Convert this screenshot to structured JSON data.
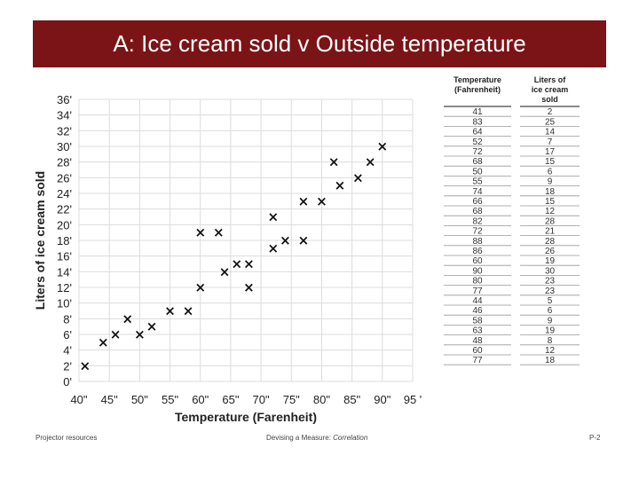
{
  "slide": {
    "title": "A: Ice cream sold v Outside temperature",
    "accent_color": "#7a1416"
  },
  "footer": {
    "left": "Projector resources",
    "center_prefix": "Devising a Measure: ",
    "center_emphasis": "Correlation",
    "right": "P-2"
  },
  "chart_data": {
    "type": "scatter",
    "title": "",
    "xlabel": "Temperature (Farenheit)",
    "ylabel": "Liters of ice cream sold",
    "xlim": [
      40,
      95
    ],
    "ylim": [
      0,
      36
    ],
    "x_ticks": [
      40,
      45,
      50,
      55,
      60,
      65,
      70,
      75,
      80,
      85,
      90,
      95
    ],
    "y_ticks": [
      0,
      2,
      4,
      6,
      8,
      10,
      12,
      14,
      16,
      18,
      20,
      22,
      24,
      26,
      28,
      30,
      32,
      34,
      36
    ],
    "x_tick_labels": [
      "40\"",
      "45\"",
      "50\"",
      "55\"",
      "60\"",
      "65\"",
      "70\"",
      "75\"",
      "80\"",
      "85\"",
      "90\"",
      "95 '"
    ],
    "y_tick_labels": [
      "0'",
      "2'",
      "4'",
      "6'",
      "8'",
      "10'",
      "12'",
      "14'",
      "16'",
      "18'",
      "20'",
      "22'",
      "24'",
      "26'",
      "28'",
      "30'",
      "32'",
      "34'",
      "36'"
    ],
    "marker": "×",
    "grid": true,
    "series": [
      {
        "name": "Liters of ice cream sold",
        "points": [
          [
            41,
            2
          ],
          [
            83,
            25
          ],
          [
            64,
            14
          ],
          [
            52,
            7
          ],
          [
            72,
            17
          ],
          [
            68,
            15
          ],
          [
            50,
            6
          ],
          [
            55,
            9
          ],
          [
            74,
            18
          ],
          [
            66,
            15
          ],
          [
            68,
            12
          ],
          [
            82,
            28
          ],
          [
            72,
            21
          ],
          [
            88,
            28
          ],
          [
            86,
            26
          ],
          [
            60,
            19
          ],
          [
            90,
            30
          ],
          [
            80,
            23
          ],
          [
            77,
            23
          ],
          [
            44,
            5
          ],
          [
            46,
            6
          ],
          [
            58,
            9
          ],
          [
            63,
            19
          ],
          [
            48,
            8
          ],
          [
            60,
            12
          ],
          [
            77,
            18
          ]
        ]
      }
    ]
  },
  "data_table": {
    "headers": [
      "Temperature\n(Fahrenheit)",
      "Liters of\nice cream\nsold"
    ],
    "rows": [
      [
        "41",
        "2"
      ],
      [
        "83",
        "25"
      ],
      [
        "64",
        "14"
      ],
      [
        "52",
        "7"
      ],
      [
        "72",
        "17"
      ],
      [
        "68",
        "15"
      ],
      [
        "50",
        "6"
      ],
      [
        "55",
        "9"
      ],
      [
        "74",
        "18"
      ],
      [
        "66",
        "15"
      ],
      [
        "68",
        "12"
      ],
      [
        "82",
        "28"
      ],
      [
        "72",
        "21"
      ],
      [
        "88",
        "28"
      ],
      [
        "86",
        "26"
      ],
      [
        "60",
        "19"
      ],
      [
        "90",
        "30"
      ],
      [
        "80",
        "23"
      ],
      [
        "77",
        "23"
      ],
      [
        "44",
        "5"
      ],
      [
        "46",
        "6"
      ],
      [
        "58",
        "9"
      ],
      [
        "63",
        "19"
      ],
      [
        "48",
        "8"
      ],
      [
        "60",
        "12"
      ],
      [
        "77",
        "18"
      ]
    ]
  }
}
